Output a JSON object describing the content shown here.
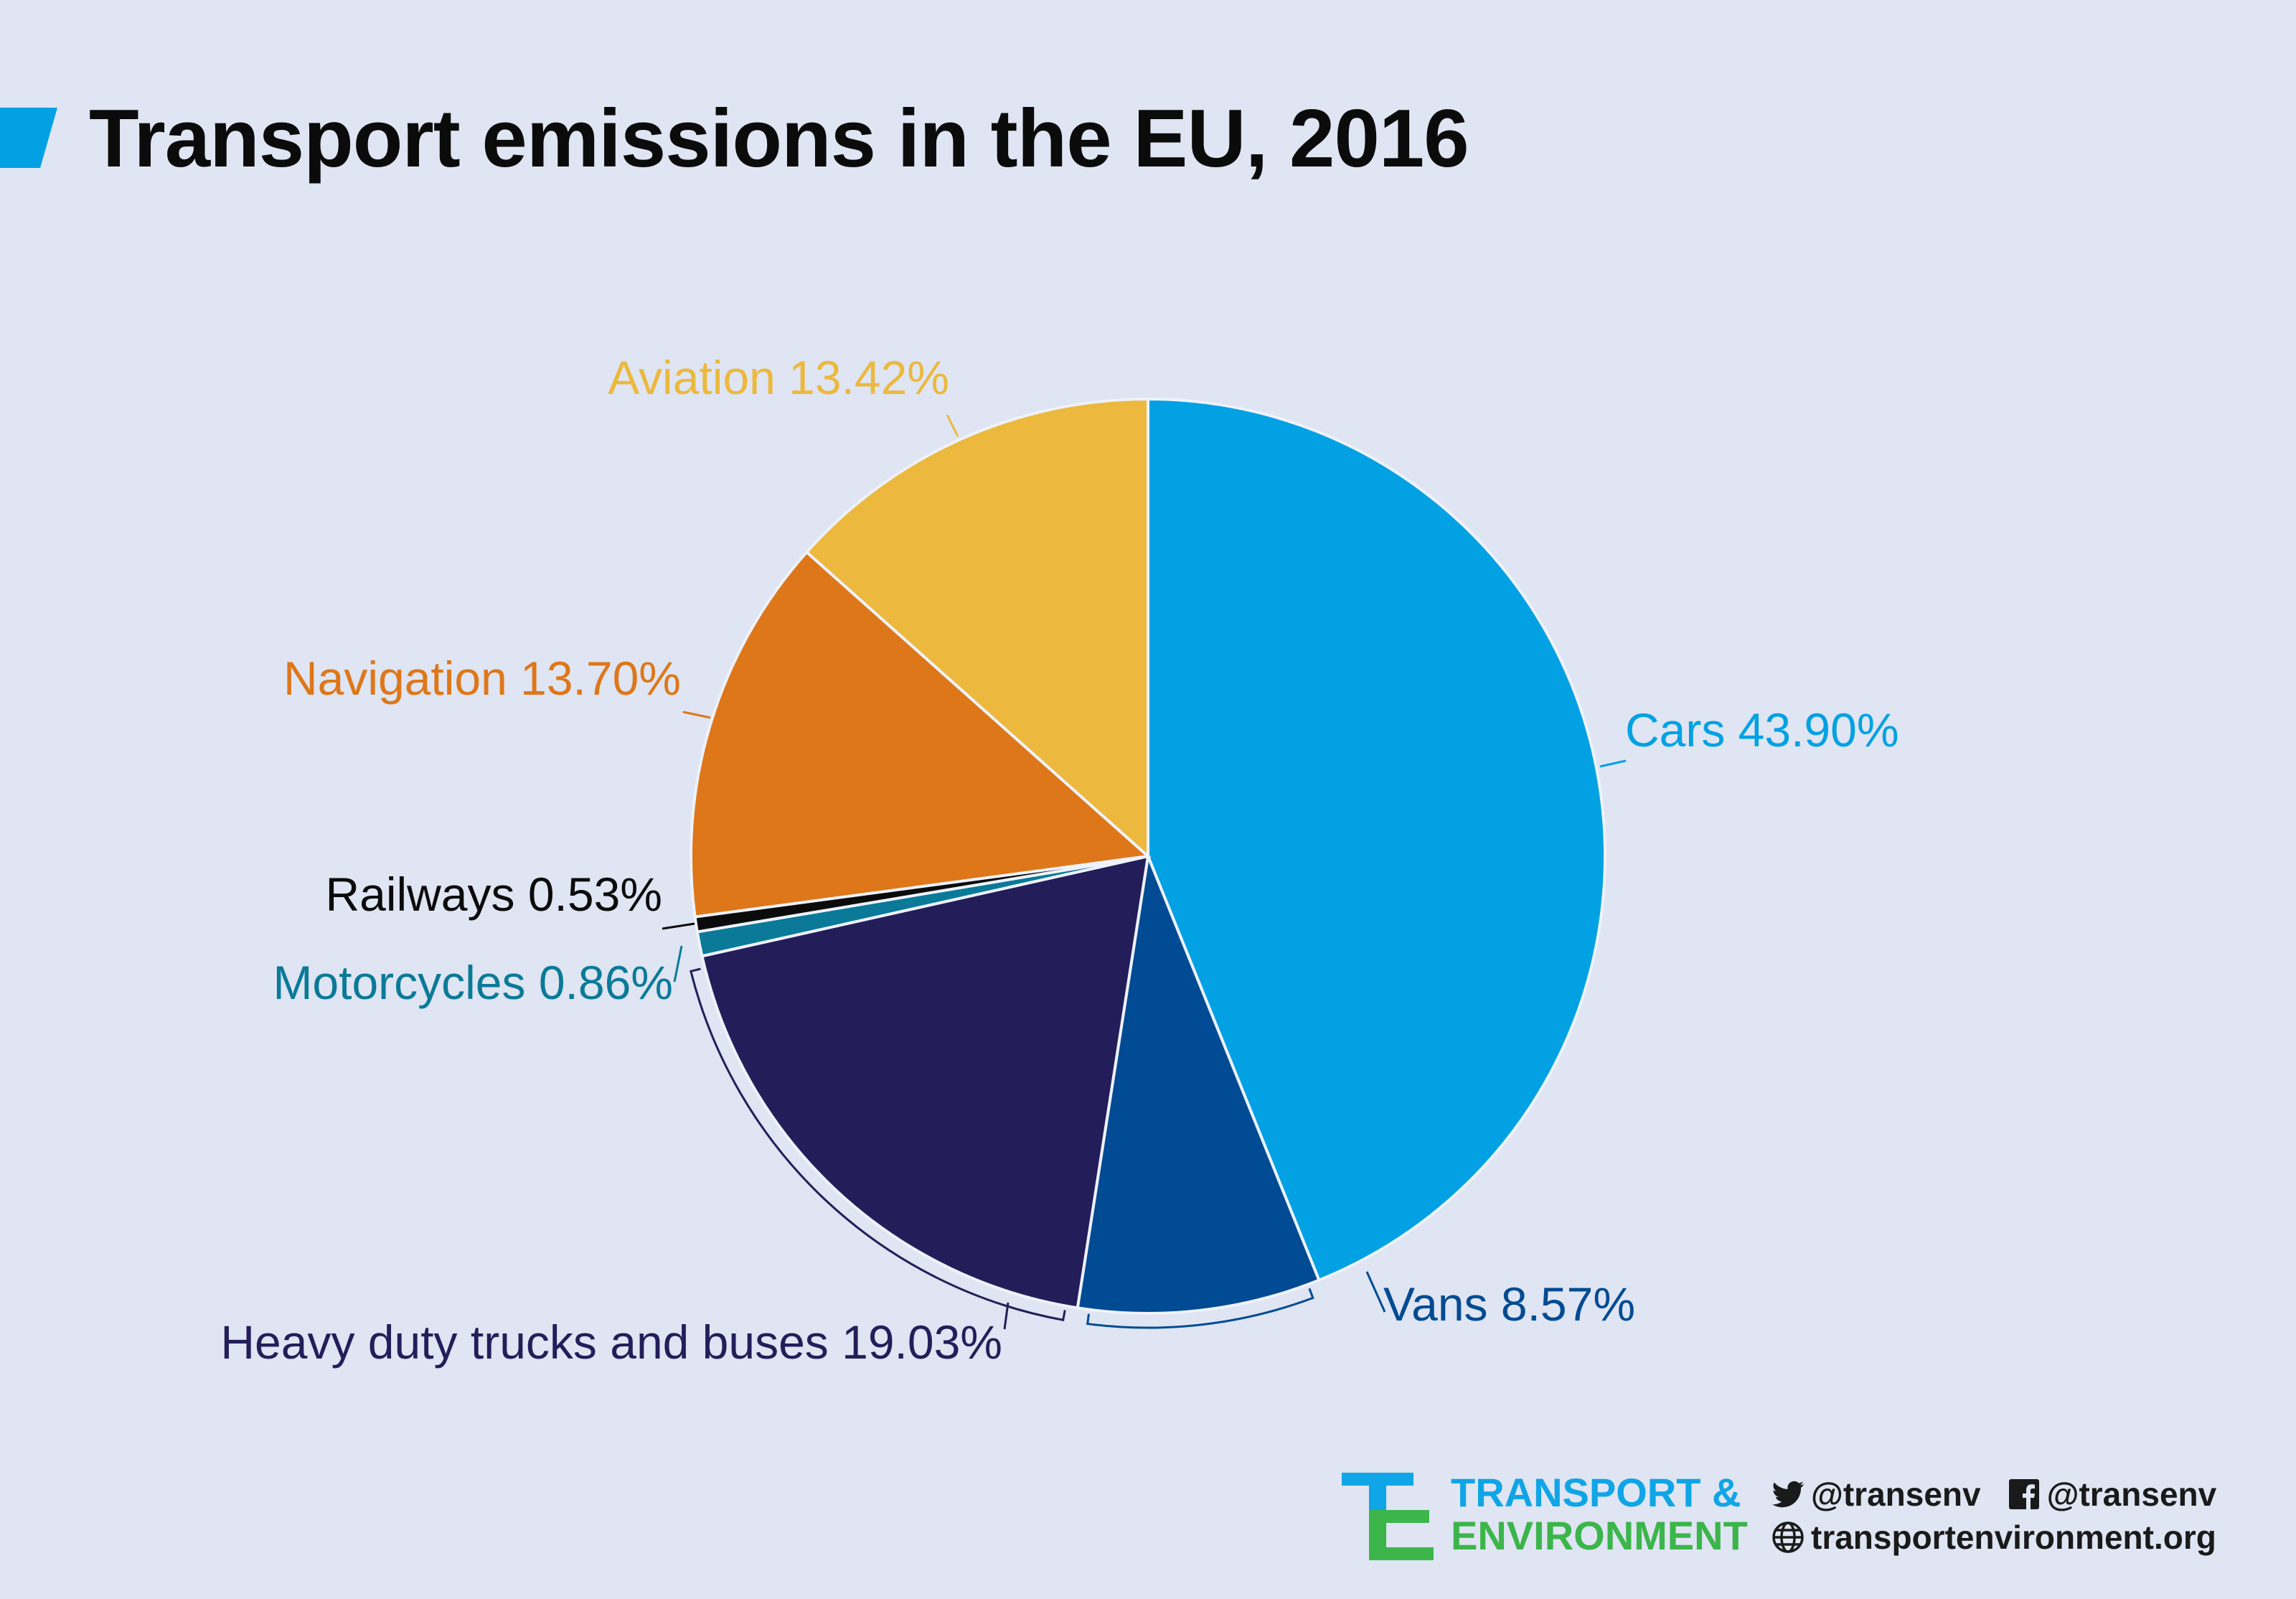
{
  "title": "Transport emissions in the EU, 2016",
  "chart_data": {
    "type": "pie",
    "title": "Transport emissions in the EU, 2016",
    "slices": [
      {
        "label": "Cars 43.90%",
        "value": 43.9,
        "color": "#02a1e3"
      },
      {
        "label": "Vans 8.57%",
        "value": 8.57,
        "color": "#004b93"
      },
      {
        "label": "Heavy duty trucks and buses 19.03%",
        "value": 19.03,
        "color": "#231e5a"
      },
      {
        "label": "Motorcycles 0.86%",
        "value": 0.86,
        "color": "#0a7a98"
      },
      {
        "label": "Railways 0.53%",
        "value": 0.53,
        "color": "#0b0b0b"
      },
      {
        "label": "Navigation 13.70%",
        "value": 13.7,
        "color": "#de7719"
      },
      {
        "label": "Aviation 13.42%",
        "value": 13.42,
        "color": "#ecb93e"
      }
    ]
  },
  "footer": {
    "logo_line1": "TRANSPORT &",
    "logo_line2": "ENVIRONMENT",
    "twitter": "@transenv",
    "facebook": "@transenv",
    "website": "transportenvironment.org"
  },
  "icons": [
    "twitter-icon",
    "facebook-icon",
    "globe-icon"
  ]
}
